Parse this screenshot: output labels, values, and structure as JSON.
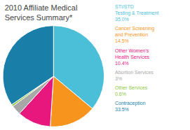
{
  "chart_data": {
    "type": "pie",
    "title": "2010 Affiliate Medical\nServices Summary*",
    "categories": [
      "STI/STD\nTesting & Treatment",
      "Cancer Screening\nand Prevention",
      "Other Women's\nHealth Services",
      "Abortion Services",
      "Other Services",
      "Contraception"
    ],
    "values": [
      35.0,
      14.5,
      10.4,
      3.0,
      0.6,
      33.5
    ],
    "value_labels": [
      "35.0%",
      "14.5%",
      "10.4%",
      "3%",
      "0.6%",
      "33.5%"
    ],
    "colors": [
      "#4bbfd8",
      "#f7941d",
      "#e8177d",
      "#a8a8a8",
      "#8dc63f",
      "#1a7fa8"
    ],
    "legend": "right"
  }
}
